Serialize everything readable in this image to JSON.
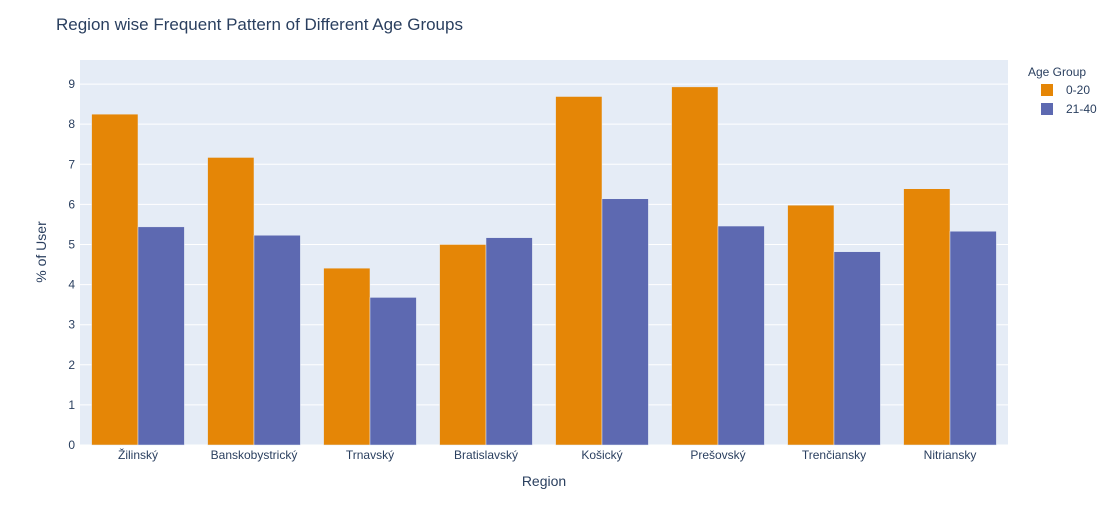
{
  "chart_data": {
    "type": "bar",
    "title": "Region wise Frequent Pattern of Different Age Groups",
    "xlabel": "Region",
    "ylabel": "% of User",
    "categories": [
      "Žilinský",
      "Banskobystrický",
      "Trnavský",
      "Bratislavský",
      "Košický",
      "Prešovský",
      "Trenčiansky",
      "Nitriansky"
    ],
    "series": [
      {
        "name": "0-20",
        "color": "#e58606",
        "values": [
          8.25,
          7.17,
          4.41,
          5.0,
          8.69,
          8.93,
          5.98,
          6.39
        ]
      },
      {
        "name": "21-40",
        "color": "#5d69b1",
        "values": [
          5.44,
          5.23,
          3.68,
          5.17,
          6.14,
          5.46,
          4.82,
          5.33
        ]
      }
    ],
    "ylim": [
      0,
      9.6
    ],
    "yticks": [
      0,
      1,
      2,
      3,
      4,
      5,
      6,
      7,
      8,
      9
    ],
    "barmode": "group",
    "grid": true,
    "legend": {
      "title": "Age Group",
      "position": "top-right"
    },
    "plot_background": "#e5ecf6",
    "gridline_color": "#ffffff",
    "text_color": "#2a3f5f"
  }
}
